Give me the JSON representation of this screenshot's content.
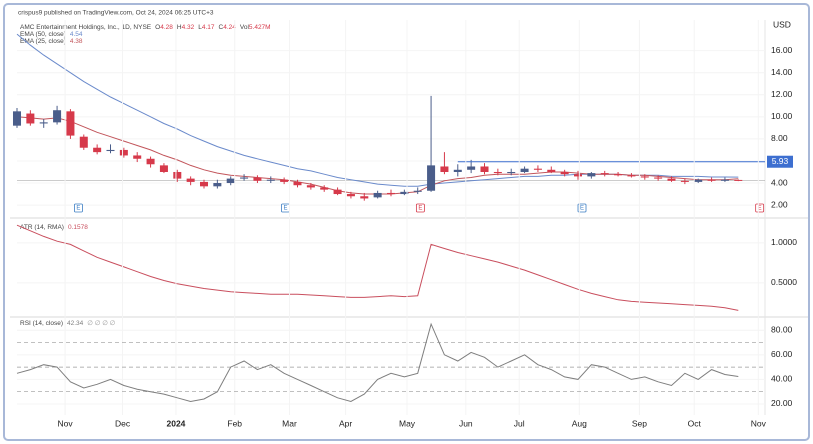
{
  "header": "crispus9 published on TradingView.com, Oct 24, 2024 06:25 UTC+3",
  "chart_data": [
    {
      "type": "candlestick",
      "title": "AMC Entertainment Holdings, Inc., 1D, NYSE",
      "ohlc_legend": [
        {
          "label": "O",
          "value": 4.28
        },
        {
          "label": "H",
          "value": 4.32
        },
        {
          "label": "L",
          "value": 4.17
        },
        {
          "label": "C",
          "value": 4.24
        },
        {
          "label": "Vol",
          "value": 5427000,
          "value_label": "5.427M"
        }
      ],
      "y_unit": "USD",
      "up_color": "#4a5d8a",
      "down_color": "#d6394a",
      "open": [
        9.2,
        10.3,
        9.4,
        9.5,
        10.5,
        8.2,
        7.2,
        6.9,
        7.0,
        6.5,
        6.2,
        5.6,
        5.0,
        4.4,
        4.1,
        3.7,
        4.0,
        4.4,
        4.5,
        4.2,
        4.3,
        4.1,
        3.8,
        3.6,
        3.4,
        3.0,
        2.8,
        2.7,
        3.1,
        3.0,
        3.2,
        3.3,
        5.5,
        5.0,
        5.2,
        5.5,
        5.0,
        4.9,
        5.0,
        5.3,
        5.2,
        5.0,
        4.8,
        4.6,
        4.9,
        4.8,
        4.7,
        4.6,
        4.5,
        4.4,
        4.2,
        4.1,
        4.3,
        4.2,
        4.28
      ],
      "high": [
        10.8,
        10.6,
        9.8,
        11.0,
        10.7,
        8.4,
        7.5,
        7.5,
        7.2,
        6.8,
        6.4,
        5.8,
        5.2,
        4.6,
        4.3,
        4.3,
        4.6,
        4.8,
        4.7,
        4.6,
        4.5,
        4.3,
        4.0,
        3.8,
        3.6,
        3.2,
        3.1,
        3.3,
        3.4,
        3.4,
        3.6,
        11.9,
        6.8,
        5.7,
        6.1,
        5.8,
        5.3,
        5.3,
        5.5,
        5.6,
        5.5,
        5.2,
        5.1,
        5.0,
        5.1,
        5.0,
        4.9,
        4.8,
        4.7,
        4.6,
        4.4,
        4.4,
        4.5,
        4.5,
        4.32
      ],
      "low": [
        9.0,
        9.2,
        9.0,
        9.3,
        8.0,
        7.0,
        6.6,
        6.7,
        6.3,
        5.9,
        5.4,
        4.9,
        4.1,
        3.8,
        3.5,
        3.5,
        3.8,
        4.2,
        4.0,
        4.0,
        3.9,
        3.6,
        3.4,
        3.2,
        2.9,
        2.6,
        2.4,
        2.6,
        2.8,
        2.9,
        3.0,
        3.2,
        4.8,
        4.6,
        4.9,
        4.8,
        4.7,
        4.7,
        4.9,
        5.0,
        4.9,
        4.6,
        4.3,
        4.4,
        4.6,
        4.6,
        4.5,
        4.3,
        4.2,
        4.1,
        3.9,
        4.0,
        4.1,
        4.1,
        4.17
      ],
      "close": [
        10.5,
        9.4,
        9.5,
        10.6,
        8.3,
        7.2,
        6.8,
        7.0,
        6.5,
        6.2,
        5.7,
        5.0,
        4.4,
        4.1,
        3.7,
        4.0,
        4.4,
        4.5,
        4.2,
        4.3,
        4.1,
        3.8,
        3.6,
        3.4,
        3.0,
        2.8,
        2.6,
        3.1,
        3.0,
        3.2,
        3.3,
        5.6,
        5.0,
        5.2,
        5.5,
        5.0,
        4.9,
        5.0,
        5.3,
        5.2,
        5.0,
        4.8,
        4.6,
        4.9,
        4.8,
        4.7,
        4.6,
        4.5,
        4.4,
        4.2,
        4.1,
        4.3,
        4.2,
        4.3,
        4.24
      ],
      "series": [
        {
          "name": "EMA (50, close)",
          "color": "#6a8acb",
          "values": [
            17.5,
            16.5,
            15.6,
            14.8,
            14.0,
            13.2,
            12.5,
            11.8,
            11.2,
            10.6,
            10.0,
            9.4,
            8.9,
            8.3,
            7.8,
            7.3,
            6.9,
            6.5,
            6.2,
            5.9,
            5.6,
            5.3,
            5.1,
            4.8,
            4.5,
            4.3,
            4.1,
            3.9,
            3.8,
            3.7,
            3.7,
            3.9,
            4.0,
            4.1,
            4.2,
            4.3,
            4.4,
            4.5,
            4.6,
            4.6,
            4.7,
            4.7,
            4.8,
            4.8,
            4.8,
            4.8,
            4.7,
            4.7,
            4.7,
            4.6,
            4.6,
            4.6,
            4.55,
            4.55,
            4.54
          ]
        },
        {
          "name": "EMA (25, close)",
          "color": "#c2555b",
          "values": [
            10.0,
            9.9,
            9.8,
            9.9,
            9.6,
            9.1,
            8.6,
            8.2,
            7.8,
            7.4,
            7.0,
            6.5,
            6.1,
            5.6,
            5.2,
            4.9,
            4.7,
            4.6,
            4.5,
            4.4,
            4.3,
            4.1,
            3.9,
            3.6,
            3.3,
            3.1,
            3.0,
            3.0,
            3.0,
            3.1,
            3.2,
            3.8,
            4.2,
            4.4,
            4.5,
            4.7,
            4.8,
            4.8,
            4.8,
            4.9,
            5.0,
            5.0,
            4.9,
            4.8,
            4.8,
            4.8,
            4.7,
            4.7,
            4.6,
            4.5,
            4.4,
            4.3,
            4.3,
            4.3,
            4.38
          ]
        }
      ],
      "hline": {
        "value": 5.93,
        "start": 33,
        "color": "#3d6fd0"
      },
      "events": [
        {
          "x": 4.6,
          "label": "E",
          "color": "#3b7dc4"
        },
        {
          "x": 20.1,
          "label": "E",
          "color": "#3b7dc4"
        },
        {
          "x": 30.2,
          "label": "E",
          "color": "#d6394a"
        },
        {
          "x": 42.3,
          "label": "E",
          "color": "#3b7dc4"
        },
        {
          "x": 55.6,
          "label": "E",
          "color": "#d6394a"
        }
      ],
      "xlim": [
        0,
        56
      ],
      "ylim": [
        1.1,
        18.6
      ],
      "yticks": [
        {
          "value": 2,
          "label": "2.00"
        },
        {
          "value": 4,
          "label": "4.00"
        },
        {
          "value": 6,
          "label": "6.00"
        },
        {
          "value": 8,
          "label": "8.00"
        },
        {
          "value": 10,
          "label": "10.00"
        },
        {
          "value": 12,
          "label": "12.00"
        },
        {
          "value": 14,
          "label": "14.00"
        },
        {
          "value": 16,
          "label": "16.00"
        }
      ]
    },
    {
      "type": "line",
      "series": [
        {
          "name": "ATR (14, RMA)",
          "color": "#c94f5e",
          "values": [
            1.22,
            1.15,
            1.08,
            1.02,
            0.98,
            0.9,
            0.82,
            0.76,
            0.7,
            0.64,
            0.58,
            0.53,
            0.49,
            0.46,
            0.43,
            0.41,
            0.39,
            0.38,
            0.37,
            0.36,
            0.36,
            0.36,
            0.35,
            0.34,
            0.33,
            0.32,
            0.32,
            0.33,
            0.34,
            0.33,
            0.34,
            0.98,
            0.93,
            0.88,
            0.84,
            0.8,
            0.76,
            0.71,
            0.66,
            0.6,
            0.54,
            0.48,
            0.42,
            0.37,
            0.33,
            0.29,
            0.27,
            0.26,
            0.25,
            0.24,
            0.23,
            0.22,
            0.21,
            0.19,
            0.1578
          ]
        }
      ],
      "xlim": [
        0,
        56
      ],
      "ylim": [
        0.1,
        1.26
      ],
      "yticks": [
        {
          "value": 0.5,
          "label": "0.5000"
        },
        {
          "value": 1,
          "label": "1.0000"
        }
      ]
    },
    {
      "type": "line",
      "series": [
        {
          "name": "RSI (14, close)",
          "color": "#7e7e7e",
          "values": [
            45,
            48,
            52,
            50,
            38,
            33,
            36,
            40,
            35,
            32,
            30,
            28,
            25,
            22,
            24,
            30,
            50,
            55,
            48,
            52,
            45,
            40,
            35,
            30,
            25,
            22,
            28,
            40,
            45,
            42,
            45,
            85,
            60,
            55,
            62,
            58,
            50,
            55,
            60,
            52,
            48,
            42,
            40,
            52,
            50,
            45,
            40,
            42,
            38,
            35,
            45,
            40,
            48,
            44,
            42.34
          ]
        }
      ],
      "extra_label": "∅ ∅ ∅ ∅",
      "hlines": [
        70,
        50,
        30
      ],
      "xlim": [
        0,
        56
      ],
      "ylim": [
        11,
        90
      ],
      "yticks": [
        {
          "value": 20,
          "label": "20.00"
        },
        {
          "value": 40,
          "label": "40.00"
        },
        {
          "value": 60,
          "label": "60.00"
        },
        {
          "value": 80,
          "label": "80.00"
        }
      ],
      "xticks": [
        {
          "value": 3.6,
          "label": "Nov"
        },
        {
          "value": 7.9,
          "label": "Dec"
        },
        {
          "value": 11.9,
          "label": "2024",
          "bold": true
        },
        {
          "value": 16.3,
          "label": "Feb"
        },
        {
          "value": 20.4,
          "label": "Mar"
        },
        {
          "value": 24.6,
          "label": "Apr"
        },
        {
          "value": 29.2,
          "label": "May"
        },
        {
          "value": 33.6,
          "label": "Jun"
        },
        {
          "value": 37.6,
          "label": "Jul"
        },
        {
          "value": 42.1,
          "label": "Aug"
        },
        {
          "value": 46.6,
          "label": "Sep"
        },
        {
          "value": 50.7,
          "label": "Oct"
        },
        {
          "value": 55.5,
          "label": "Nov"
        }
      ]
    }
  ]
}
